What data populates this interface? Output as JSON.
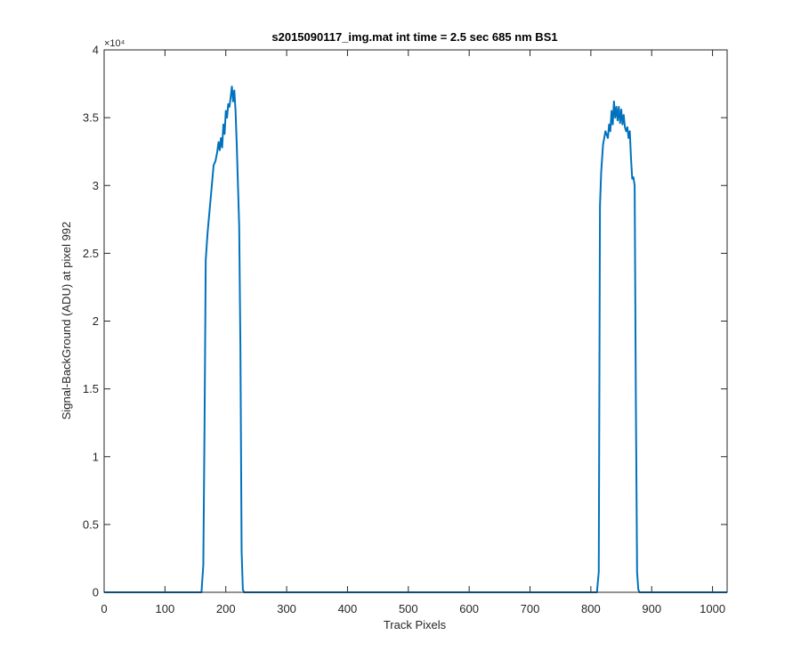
{
  "chart_data": {
    "type": "line",
    "title": "s2015090117_img.mat int time = 2.5 sec  685 nm BS1",
    "xlabel": "Track Pixels",
    "ylabel": "Signal-BackGround (ADU) at pixel 992",
    "y_exponent_label": "×10⁴",
    "y_scale_factor": 10000,
    "xlim": [
      0,
      1024
    ],
    "ylim": [
      0,
      40000
    ],
    "x_ticks": [
      0,
      100,
      200,
      300,
      400,
      500,
      600,
      700,
      800,
      900,
      1000
    ],
    "x_tick_labels": [
      "0",
      "100",
      "200",
      "300",
      "400",
      "500",
      "600",
      "700",
      "800",
      "900",
      "1000"
    ],
    "y_ticks": [
      0,
      5000,
      10000,
      15000,
      20000,
      25000,
      30000,
      35000,
      40000
    ],
    "y_tick_labels": [
      "0",
      "0.5",
      "1",
      "1.5",
      "2",
      "2.5",
      "3",
      "3.5",
      "4"
    ],
    "grid": false,
    "series": [
      {
        "color": "#0072BD",
        "x": [
          0,
          160,
          163,
          165,
          167,
          170,
          175,
          180,
          183,
          186,
          188,
          190,
          192,
          194,
          196,
          198,
          200,
          202,
          204,
          206,
          208,
          210,
          212,
          214,
          216,
          218,
          220,
          222,
          224,
          226,
          228,
          230,
          232,
          240,
          400,
          600,
          800,
          810,
          813,
          815,
          817,
          820,
          824,
          828,
          830,
          832,
          834,
          836,
          838,
          840,
          842,
          844,
          846,
          848,
          850,
          852,
          854,
          856,
          858,
          860,
          862,
          864,
          866,
          868,
          870,
          872,
          874,
          876,
          878,
          880,
          885,
          1024
        ],
        "y": [
          0,
          0,
          2000,
          12000,
          24500,
          26500,
          29000,
          31500,
          31800,
          32500,
          33200,
          32600,
          33500,
          32800,
          34500,
          33800,
          35500,
          35000,
          36000,
          35800,
          36500,
          37300,
          36200,
          37000,
          35500,
          33000,
          30000,
          27000,
          18000,
          3000,
          200,
          0,
          0,
          0,
          0,
          0,
          0,
          0,
          1500,
          28500,
          31000,
          33000,
          34000,
          33500,
          34500,
          34000,
          35500,
          34500,
          36200,
          35000,
          35800,
          34800,
          35800,
          34600,
          35600,
          34500,
          35200,
          34300,
          34000,
          34300,
          33500,
          34000,
          32000,
          30500,
          30600,
          30000,
          14000,
          1500,
          200,
          0,
          0,
          0
        ]
      }
    ]
  }
}
